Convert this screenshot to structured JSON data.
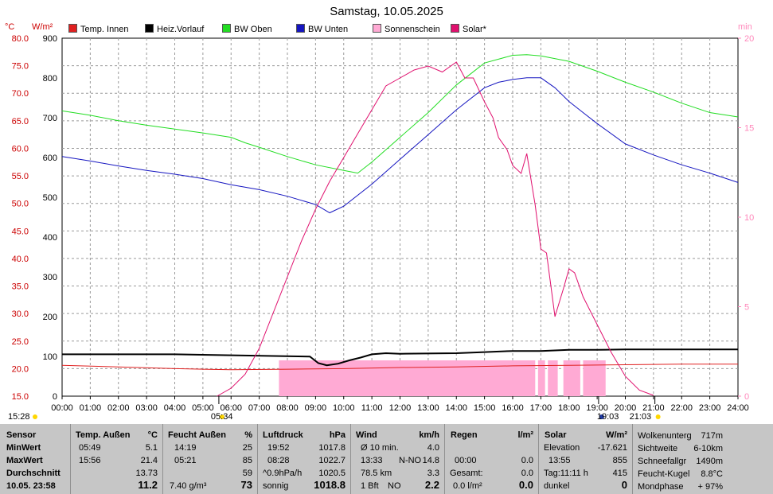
{
  "title": "Samstag, 10.05.2025",
  "axis_units": {
    "temp": "°C",
    "solar": "W/m²",
    "sunshine": "min"
  },
  "legend": [
    {
      "label": "Temp. Innen",
      "color": "#e02020"
    },
    {
      "label": "Heiz.Vorlauf",
      "color": "#000000"
    },
    {
      "label": "BW Oben",
      "color": "#22dd22"
    },
    {
      "label": "BW Unten",
      "color": "#1515c0"
    },
    {
      "label": "Sonnenschein",
      "color": "#ffaad4"
    },
    {
      "label": "Solar*",
      "color": "#e0106e"
    }
  ],
  "events": {
    "sunrise": "05:34",
    "sunset": "21:03",
    "moon_rise": "19:03",
    "moon_set": "15:28"
  },
  "chart_data": {
    "type": "line",
    "x_ticks": [
      "00:00",
      "01:00",
      "02:00",
      "03:00",
      "04:00",
      "05:00",
      "06:00",
      "07:00",
      "08:00",
      "09:00",
      "10:00",
      "11:00",
      "12:00",
      "13:00",
      "14:00",
      "15:00",
      "16:00",
      "17:00",
      "18:00",
      "19:00",
      "20:00",
      "21:00",
      "22:00",
      "23:00",
      "24:00"
    ],
    "xlim": [
      0,
      24
    ],
    "y_left_temp": {
      "ticks": [
        "80.0",
        "75.0",
        "70.0",
        "65.0",
        "60.0",
        "55.0",
        "50.0",
        "45.0",
        "40.0",
        "35.0",
        "30.0",
        "25.0",
        "20.0",
        "15.0"
      ],
      "ylim": [
        15,
        80
      ]
    },
    "y_left_solar": {
      "ticks": [
        "900",
        "800",
        "700",
        "600",
        "500",
        "400",
        "300",
        "200",
        "100",
        "0"
      ],
      "ylim": [
        0,
        900
      ]
    },
    "y_right_sunshine": {
      "ticks": [
        "20",
        "15",
        "10",
        "5",
        "0"
      ],
      "ylim": [
        0,
        20
      ]
    },
    "grid": true,
    "series": [
      {
        "name": "Temp. Innen",
        "color": "#e02020",
        "axis": "temp",
        "x": [
          0,
          2,
          4,
          6,
          8,
          10,
          12,
          14,
          16,
          18,
          20,
          22,
          24
        ],
        "y": [
          20.6,
          20.3,
          20.0,
          19.8,
          19.9,
          20.0,
          20.2,
          20.3,
          20.5,
          20.6,
          20.7,
          20.8,
          20.8
        ]
      },
      {
        "name": "Heiz.Vorlauf",
        "color": "#000000",
        "axis": "temp",
        "x": [
          0,
          4,
          7.5,
          8.8,
          9.1,
          9.4,
          9.8,
          10.2,
          10.6,
          11,
          11.5,
          12,
          14,
          15,
          16,
          17,
          18,
          19,
          20,
          22,
          24
        ],
        "y": [
          22.6,
          22.6,
          22.3,
          22.2,
          21.0,
          20.6,
          20.9,
          21.5,
          22.0,
          22.6,
          22.8,
          22.7,
          22.8,
          23.0,
          23.2,
          23.2,
          23.4,
          23.4,
          23.5,
          23.5,
          23.5
        ]
      },
      {
        "name": "BW Oben",
        "color": "#22dd22",
        "axis": "temp",
        "x": [
          0,
          1,
          2,
          3,
          4,
          5,
          6,
          6.5,
          7,
          8,
          9,
          10,
          10.5,
          11,
          12,
          13,
          14,
          15,
          16,
          16.5,
          17,
          18,
          19,
          20,
          21,
          22,
          23,
          24
        ],
        "y": [
          66.8,
          66.0,
          65.0,
          64.2,
          63.5,
          62.8,
          62.0,
          61.0,
          60.2,
          58.5,
          57.0,
          56.0,
          55.5,
          57.5,
          62.0,
          66.5,
          71.5,
          75.5,
          76.9,
          77.0,
          76.8,
          75.8,
          74.0,
          72.0,
          70.2,
          68.2,
          66.5,
          65.7
        ]
      },
      {
        "name": "BW Unten",
        "color": "#1515c0",
        "axis": "temp",
        "x": [
          0,
          1,
          2,
          3,
          4,
          5,
          6,
          7,
          8,
          9,
          9.5,
          10,
          11,
          12,
          13,
          14,
          15,
          15.5,
          16,
          16.5,
          17,
          17.5,
          18,
          18.5,
          19,
          20,
          21,
          22,
          23,
          24
        ],
        "y": [
          58.5,
          57.7,
          56.8,
          56.0,
          55.3,
          54.5,
          53.4,
          52.5,
          51.3,
          49.8,
          48.3,
          49.5,
          53.5,
          58.0,
          62.5,
          67.0,
          71.0,
          72.0,
          72.5,
          72.8,
          72.8,
          71.0,
          68.5,
          66.5,
          64.5,
          60.8,
          58.8,
          57.0,
          55.5,
          53.8
        ]
      },
      {
        "name": "Solar*",
        "color": "#e0106e",
        "axis": "solar",
        "x": [
          5.5,
          6.0,
          6.5,
          7.0,
          7.5,
          8.0,
          8.5,
          9.0,
          9.5,
          10.0,
          10.5,
          11.0,
          11.5,
          12.0,
          12.5,
          13.0,
          13.5,
          14.0,
          14.3,
          14.6,
          15.0,
          15.3,
          15.5,
          15.8,
          16.0,
          16.3,
          16.5,
          16.8,
          17.0,
          17.2,
          17.5,
          17.8,
          18.0,
          18.2,
          18.5,
          19.0,
          19.5,
          20.0,
          20.5,
          21.0
        ],
        "y": [
          0,
          20,
          55,
          120,
          210,
          300,
          390,
          470,
          540,
          600,
          660,
          720,
          780,
          800,
          820,
          830,
          815,
          840,
          800,
          800,
          740,
          700,
          650,
          620,
          580,
          560,
          610,
          480,
          370,
          360,
          200,
          270,
          320,
          310,
          250,
          180,
          110,
          50,
          15,
          2
        ]
      },
      {
        "name": "Sonnenschein",
        "color": "#ffaad4",
        "axis": "sunshine",
        "type": "bar",
        "intervals": [
          [
            7.7,
            16.8
          ],
          [
            16.9,
            17.15
          ],
          [
            17.25,
            17.6
          ],
          [
            17.8,
            18.4
          ],
          [
            18.5,
            19.3
          ]
        ],
        "value_min": 2
      }
    ]
  },
  "stats": {
    "sensor": {
      "header": "Sensor",
      "rows": [
        "MinWert",
        "MaxWert",
        "Durchschnitt",
        "10.05. 23:58"
      ]
    },
    "temp": {
      "header": "Temp. Außen",
      "unit": "°C",
      "rows": [
        [
          "05:49",
          "5.1"
        ],
        [
          "15:56",
          "21.4"
        ],
        [
          "",
          "13.73"
        ],
        [
          "",
          "11.2"
        ]
      ]
    },
    "humidity": {
      "header": "Feucht Außen",
      "unit": "%",
      "rows": [
        [
          "14:19",
          "25"
        ],
        [
          "05:21",
          "85"
        ],
        [
          "",
          "59"
        ],
        [
          "7.40 g/m³",
          "73"
        ]
      ]
    },
    "pressure": {
      "header": "Luftdruck",
      "unit": "hPa",
      "rows": [
        [
          "19:52",
          "1017.8"
        ],
        [
          "08:28",
          "1022.7"
        ],
        [
          "^0.9hPa/h",
          "1020.5"
        ],
        [
          "sonnig",
          "1018.8"
        ]
      ]
    },
    "wind": {
      "header": "Wind",
      "unit": "km/h",
      "rows": [
        [
          "Ø 10 min.",
          "",
          "4.0"
        ],
        [
          "13:33",
          "N-NO",
          "14.8"
        ],
        [
          "78.5 km",
          "",
          "3.3"
        ],
        [
          "1 Bft",
          "NO",
          "2.2"
        ]
      ]
    },
    "rain": {
      "header": "Regen",
      "unit": "l/m²",
      "rows": [
        [
          "",
          ""
        ],
        [
          "00:00",
          "0.0"
        ],
        [
          "Gesamt:",
          "0.0"
        ],
        [
          "0.0 l/m²",
          "0.0"
        ]
      ]
    },
    "solar": {
      "header": "Solar",
      "unit": "W/m²",
      "rows": [
        [
          "Elevation",
          "-17.621"
        ],
        [
          "13:55",
          "855"
        ],
        [
          "Tag:11:11 h",
          "415"
        ],
        [
          "dunkel",
          "0"
        ]
      ]
    },
    "weather": {
      "rows": [
        [
          "Wolkenunterg",
          "717m"
        ],
        [
          "Sichtweite",
          "6-10km"
        ],
        [
          "Schneefallgr",
          "1490m"
        ],
        [
          "Feucht-Kugel",
          "8.8°C"
        ],
        [
          "Mondphase",
          "+ 97%"
        ]
      ]
    }
  }
}
